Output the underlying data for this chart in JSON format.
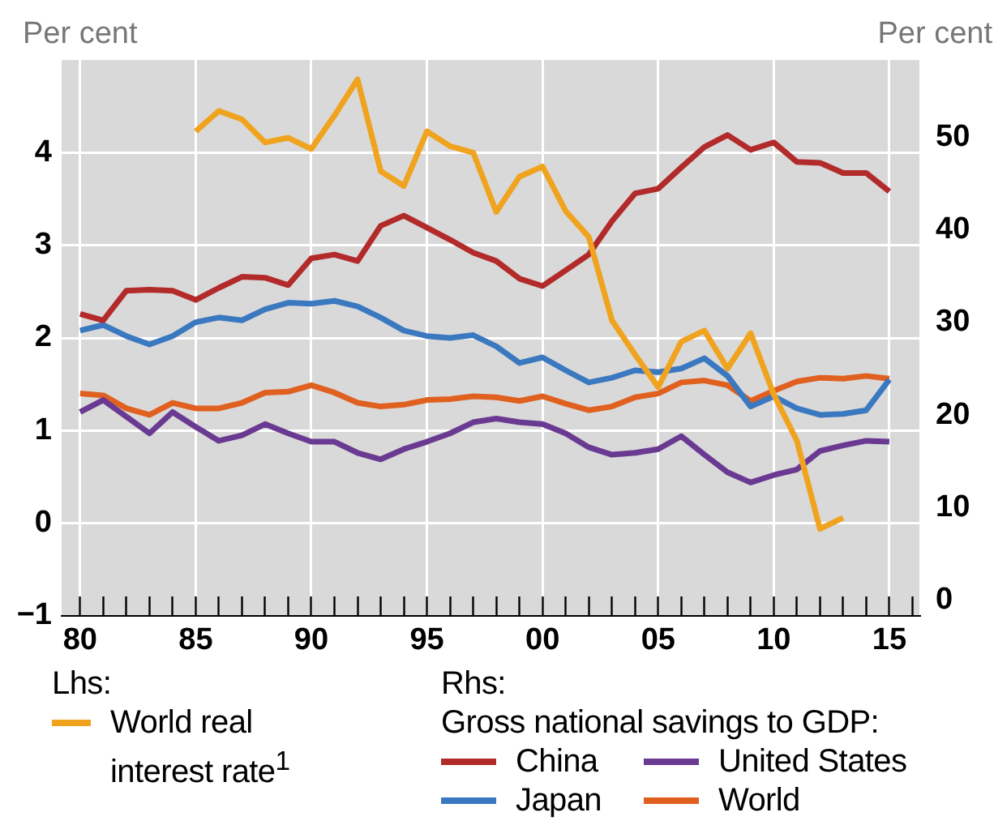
{
  "chart_data": {
    "type": "line",
    "ylabel": "Per cent",
    "y2label": "Per cent",
    "annotations": [
      "Lhs:",
      "Rhs:",
      "Gross national savings to GDP:"
    ],
    "x": [
      1980,
      1981,
      1982,
      1983,
      1984,
      1985,
      1986,
      1987,
      1988,
      1989,
      1990,
      1991,
      1992,
      1993,
      1994,
      1995,
      1996,
      1997,
      1998,
      1999,
      2000,
      2001,
      2002,
      2003,
      2004,
      2005,
      2006,
      2007,
      2008,
      2009,
      2010,
      2011,
      2012,
      2013,
      2014,
      2015
    ],
    "xlim": [
      1979.2,
      2016.3
    ],
    "xticks": [
      {
        "value": 1980,
        "label": "80"
      },
      {
        "value": 1981,
        "label": null
      },
      {
        "value": 1982,
        "label": null
      },
      {
        "value": 1983,
        "label": null
      },
      {
        "value": 1984,
        "label": null
      },
      {
        "value": 1985,
        "label": "85"
      },
      {
        "value": 1986,
        "label": null
      },
      {
        "value": 1987,
        "label": null
      },
      {
        "value": 1988,
        "label": null
      },
      {
        "value": 1989,
        "label": null
      },
      {
        "value": 1990,
        "label": "90"
      },
      {
        "value": 1991,
        "label": null
      },
      {
        "value": 1992,
        "label": null
      },
      {
        "value": 1993,
        "label": null
      },
      {
        "value": 1994,
        "label": null
      },
      {
        "value": 1995,
        "label": "95"
      },
      {
        "value": 1996,
        "label": null
      },
      {
        "value": 1997,
        "label": null
      },
      {
        "value": 1998,
        "label": null
      },
      {
        "value": 1999,
        "label": null
      },
      {
        "value": 2000,
        "label": "00"
      },
      {
        "value": 2001,
        "label": null
      },
      {
        "value": 2002,
        "label": null
      },
      {
        "value": 2003,
        "label": null
      },
      {
        "value": 2004,
        "label": null
      },
      {
        "value": 2005,
        "label": "05"
      },
      {
        "value": 2006,
        "label": null
      },
      {
        "value": 2007,
        "label": null
      },
      {
        "value": 2008,
        "label": null
      },
      {
        "value": 2009,
        "label": null
      },
      {
        "value": 2010,
        "label": "10"
      },
      {
        "value": 2011,
        "label": null
      },
      {
        "value": 2012,
        "label": null
      },
      {
        "value": 2013,
        "label": null
      },
      {
        "value": 2014,
        "label": null
      },
      {
        "value": 2015,
        "label": "15"
      },
      {
        "value": 2016,
        "label": null
      }
    ],
    "ylim": [
      -1,
      5
    ],
    "yticks": [
      {
        "value": -1,
        "label": "−1"
      },
      0,
      1,
      2,
      3,
      4
    ],
    "y2lim": [
      0,
      60
    ],
    "y2ticks": [
      0,
      10,
      20,
      30,
      40,
      50
    ],
    "grid": true,
    "legend": "bottom",
    "series": [
      {
        "name": "World real interest rate$^{1}$",
        "color": "#f0a31e",
        "values": [
          null,
          null,
          null,
          null,
          null,
          4.23,
          4.45,
          4.36,
          4.11,
          4.16,
          4.04,
          4.4,
          4.79,
          3.8,
          3.64,
          4.23,
          4.07,
          4.0,
          3.36,
          3.74,
          3.85,
          3.37,
          3.09,
          2.19,
          1.82,
          1.47,
          1.96,
          2.08,
          1.67,
          2.05,
          1.39,
          0.89,
          -0.06,
          0.06,
          null,
          null
        ]
      },
      {
        "name": "China",
        "color": "#b22a2a",
        "axis": "y2",
        "values": [
          32.6,
          31.9,
          35.1,
          35.2,
          35.1,
          34.1,
          35.4,
          36.6,
          36.5,
          35.7,
          38.6,
          39.0,
          38.3,
          42.1,
          43.2,
          41.9,
          40.6,
          39.2,
          38.3,
          36.4,
          35.6,
          37.3,
          39.0,
          42.6,
          45.6,
          46.1,
          48.4,
          50.6,
          51.9,
          50.3,
          51.1,
          49.0,
          48.9,
          47.8,
          47.8,
          45.8
        ]
      },
      {
        "name": "Japan",
        "color": "#3a78c0",
        "axis": "y2",
        "values": [
          30.8,
          31.4,
          30.2,
          29.3,
          30.2,
          31.7,
          32.2,
          31.9,
          33.1,
          33.8,
          33.7,
          34.0,
          33.4,
          32.2,
          30.8,
          30.2,
          30.0,
          30.3,
          29.1,
          27.3,
          27.9,
          26.5,
          25.2,
          25.7,
          26.5,
          26.3,
          26.7,
          27.8,
          25.9,
          22.6,
          23.7,
          22.4,
          21.7,
          21.8,
          22.2,
          25.5
        ]
      },
      {
        "name": "United States",
        "color": "#6a3a92",
        "axis": "y2",
        "values": [
          22.0,
          23.3,
          21.5,
          19.7,
          22.0,
          20.4,
          18.9,
          19.5,
          20.7,
          19.7,
          18.8,
          18.8,
          17.6,
          16.9,
          18.0,
          18.8,
          19.7,
          20.9,
          21.3,
          20.9,
          20.7,
          19.7,
          18.2,
          17.4,
          17.6,
          18.0,
          19.4,
          17.4,
          15.5,
          14.4,
          15.2,
          15.8,
          17.8,
          18.4,
          18.9,
          18.8
        ]
      },
      {
        "name": "World",
        "color": "#e06020",
        "axis": "y2",
        "values": [
          24.0,
          23.8,
          22.4,
          21.7,
          23.0,
          22.4,
          22.4,
          23.0,
          24.1,
          24.2,
          24.9,
          24.1,
          23.0,
          22.6,
          22.8,
          23.3,
          23.4,
          23.7,
          23.6,
          23.2,
          23.7,
          22.9,
          22.2,
          22.6,
          23.6,
          24.0,
          25.2,
          25.4,
          24.9,
          23.2,
          24.3,
          25.3,
          25.7,
          25.6,
          25.9,
          25.6
        ]
      }
    ]
  }
}
